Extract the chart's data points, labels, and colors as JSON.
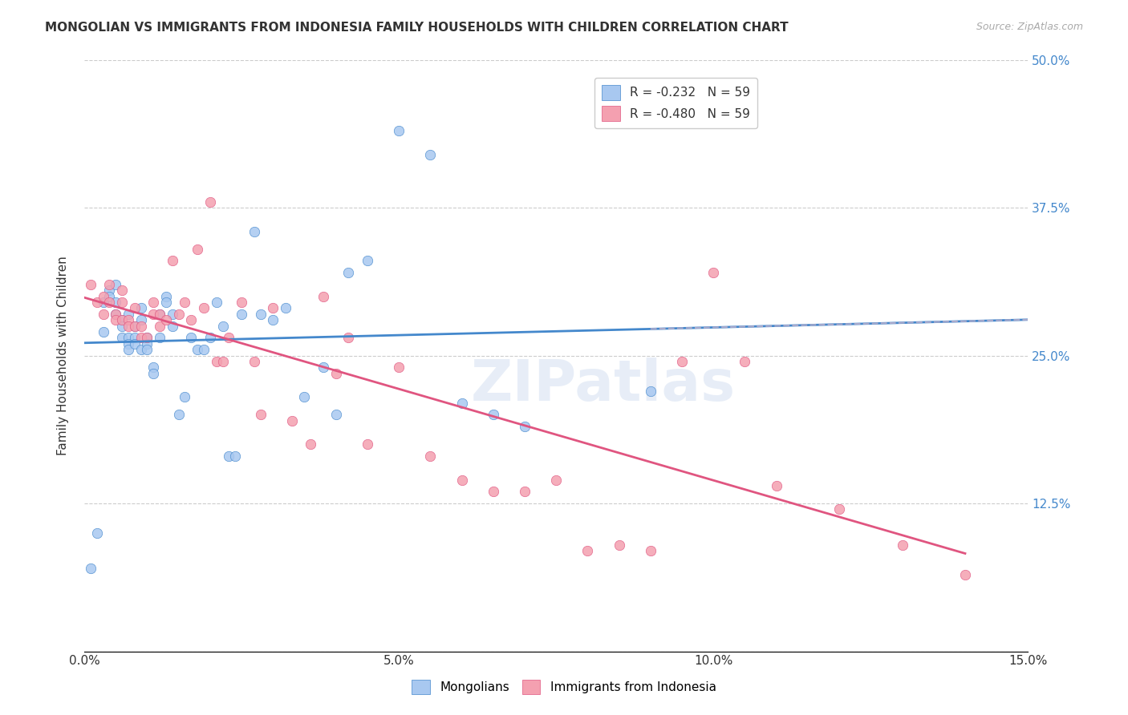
{
  "title": "MONGOLIAN VS IMMIGRANTS FROM INDONESIA FAMILY HOUSEHOLDS WITH CHILDREN CORRELATION CHART",
  "source": "Source: ZipAtlas.com",
  "xlabel_bottom": "",
  "ylabel": "Family Households with Children",
  "x_min": 0.0,
  "x_max": 0.15,
  "y_min": 0.0,
  "y_max": 0.5,
  "x_ticks": [
    0.0,
    0.05,
    0.1,
    0.15
  ],
  "x_tick_labels": [
    "0.0%",
    "5.0%",
    "10.0%",
    "15.0%"
  ],
  "y_ticks": [
    0.0,
    0.125,
    0.25,
    0.375,
    0.5
  ],
  "y_tick_labels_right": [
    "",
    "12.5%",
    "25.0%",
    "37.5%",
    "50.0%"
  ],
  "legend_r1": "R = -0.232   N = 59",
  "legend_r2": "R = -0.480   N = 59",
  "color_mongolian": "#a8c8f0",
  "color_indonesia": "#f4a0b0",
  "color_line_mongolian": "#4488cc",
  "color_line_indonesia": "#e05580",
  "color_line_dashed": "#aaaacc",
  "watermark": "ZIPatlas",
  "mongolian_x": [
    0.001,
    0.002,
    0.003,
    0.003,
    0.004,
    0.004,
    0.005,
    0.005,
    0.005,
    0.006,
    0.006,
    0.006,
    0.007,
    0.007,
    0.007,
    0.007,
    0.008,
    0.008,
    0.008,
    0.009,
    0.009,
    0.009,
    0.01,
    0.01,
    0.01,
    0.011,
    0.011,
    0.012,
    0.012,
    0.013,
    0.013,
    0.014,
    0.014,
    0.015,
    0.016,
    0.017,
    0.018,
    0.019,
    0.02,
    0.021,
    0.022,
    0.023,
    0.024,
    0.025,
    0.027,
    0.028,
    0.03,
    0.032,
    0.035,
    0.038,
    0.04,
    0.042,
    0.045,
    0.05,
    0.055,
    0.06,
    0.065,
    0.07,
    0.09
  ],
  "mongolian_y": [
    0.07,
    0.1,
    0.295,
    0.27,
    0.305,
    0.3,
    0.31,
    0.295,
    0.285,
    0.28,
    0.275,
    0.265,
    0.265,
    0.26,
    0.255,
    0.285,
    0.275,
    0.265,
    0.26,
    0.255,
    0.29,
    0.28,
    0.265,
    0.26,
    0.255,
    0.24,
    0.235,
    0.285,
    0.265,
    0.3,
    0.295,
    0.275,
    0.285,
    0.2,
    0.215,
    0.265,
    0.255,
    0.255,
    0.265,
    0.295,
    0.275,
    0.165,
    0.165,
    0.285,
    0.355,
    0.285,
    0.28,
    0.29,
    0.215,
    0.24,
    0.2,
    0.32,
    0.33,
    0.44,
    0.42,
    0.21,
    0.2,
    0.19,
    0.22
  ],
  "indonesia_x": [
    0.001,
    0.002,
    0.003,
    0.003,
    0.004,
    0.004,
    0.005,
    0.005,
    0.006,
    0.006,
    0.006,
    0.007,
    0.007,
    0.008,
    0.008,
    0.009,
    0.009,
    0.01,
    0.011,
    0.011,
    0.012,
    0.012,
    0.013,
    0.014,
    0.015,
    0.016,
    0.017,
    0.018,
    0.019,
    0.02,
    0.021,
    0.022,
    0.023,
    0.025,
    0.027,
    0.028,
    0.03,
    0.033,
    0.036,
    0.038,
    0.04,
    0.042,
    0.045,
    0.05,
    0.055,
    0.06,
    0.065,
    0.07,
    0.075,
    0.08,
    0.085,
    0.09,
    0.095,
    0.1,
    0.105,
    0.11,
    0.12,
    0.13,
    0.14
  ],
  "indonesia_y": [
    0.31,
    0.295,
    0.3,
    0.285,
    0.31,
    0.295,
    0.285,
    0.28,
    0.305,
    0.295,
    0.28,
    0.28,
    0.275,
    0.29,
    0.275,
    0.275,
    0.265,
    0.265,
    0.295,
    0.285,
    0.285,
    0.275,
    0.28,
    0.33,
    0.285,
    0.295,
    0.28,
    0.34,
    0.29,
    0.38,
    0.245,
    0.245,
    0.265,
    0.295,
    0.245,
    0.2,
    0.29,
    0.195,
    0.175,
    0.3,
    0.235,
    0.265,
    0.175,
    0.24,
    0.165,
    0.145,
    0.135,
    0.135,
    0.145,
    0.085,
    0.09,
    0.085,
    0.245,
    0.32,
    0.245,
    0.14,
    0.12,
    0.09,
    0.065
  ]
}
